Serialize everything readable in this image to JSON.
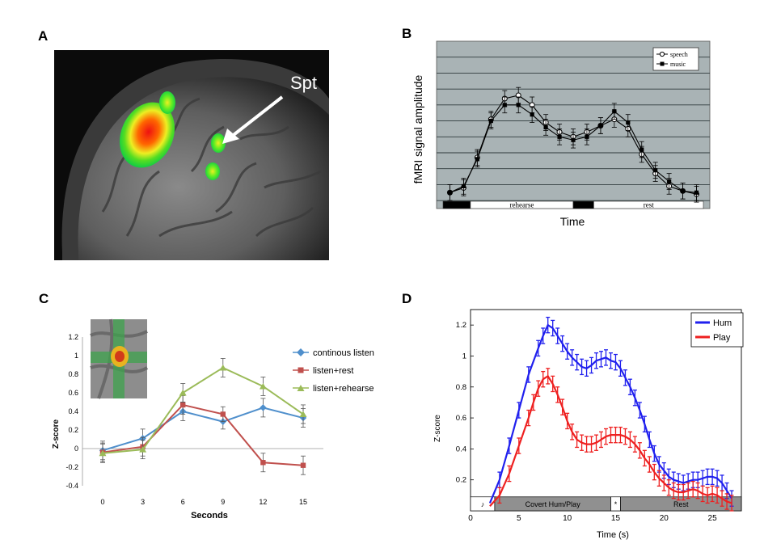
{
  "panels": {
    "A": {
      "letter": "A",
      "arrow_label": "Spt"
    },
    "B": {
      "letter": "B",
      "ylabel": "fMRI signal amplitude",
      "xlabel": "Time",
      "segment_labels": [
        "rehearse",
        "rest"
      ],
      "legend": [
        "speech",
        "music"
      ]
    },
    "C": {
      "letter": "C",
      "ylabel": "Z-score",
      "xlabel": "Seconds",
      "legend": [
        "continous listen",
        "listen+rest",
        "listen+rehearse"
      ]
    },
    "D": {
      "letter": "D",
      "ylabel": "Z-score",
      "xlabel": "Time (s)",
      "legend": [
        "Hum",
        "Play"
      ],
      "segment_labels": [
        "♪",
        "Covert Hum/Play",
        "*",
        "Rest"
      ]
    }
  },
  "chart_data": [
    {
      "panel": "B",
      "type": "line",
      "xlabel": "Time",
      "ylabel": "fMRI signal amplitude",
      "ylim": [
        0,
        10.5
      ],
      "grid": true,
      "legend_position": "top-right",
      "x": [
        1,
        2,
        3,
        4,
        5,
        6,
        7,
        8,
        9,
        10,
        11,
        12,
        13,
        14,
        15,
        16,
        17,
        18,
        19
      ],
      "series": [
        {
          "name": "speech",
          "color": "#ffffff",
          "marker": "circle-open",
          "values": [
            1.0,
            1.3,
            3.2,
            5.6,
            6.9,
            7.1,
            6.5,
            5.4,
            4.8,
            4.5,
            4.8,
            5.2,
            5.6,
            5.0,
            3.4,
            2.2,
            1.4,
            1.1,
            0.9
          ],
          "errors": [
            0.5,
            0.5,
            0.5,
            0.5,
            0.5,
            0.5,
            0.5,
            0.5,
            0.5,
            0.5,
            0.5,
            0.5,
            0.5,
            0.5,
            0.5,
            0.5,
            0.5,
            0.5,
            0.5
          ]
        },
        {
          "name": "music",
          "color": "#000000",
          "marker": "square-filled",
          "values": [
            1.0,
            1.4,
            3.1,
            5.5,
            6.5,
            6.5,
            5.9,
            5.1,
            4.5,
            4.3,
            4.5,
            5.2,
            6.1,
            5.4,
            3.7,
            2.4,
            1.7,
            1.1,
            1.0
          ],
          "errors": [
            0.5,
            0.5,
            0.5,
            0.5,
            0.5,
            0.5,
            0.5,
            0.5,
            0.5,
            0.5,
            0.5,
            0.5,
            0.5,
            0.5,
            0.5,
            0.5,
            0.5,
            0.5,
            0.5
          ]
        }
      ],
      "timeline": [
        {
          "label": "",
          "from": 0.5,
          "to": 2.5,
          "fill": "#000000"
        },
        {
          "label": "rehearse",
          "from": 2.5,
          "to": 10.0,
          "fill": "#ffffff"
        },
        {
          "label": "",
          "from": 10.0,
          "to": 11.5,
          "fill": "#000000"
        },
        {
          "label": "rest",
          "from": 11.5,
          "to": 19.5,
          "fill": "#ffffff"
        }
      ]
    },
    {
      "panel": "C",
      "type": "line",
      "xlabel": "Seconds",
      "ylabel": "Z-score",
      "ylim": [
        -0.4,
        1.2
      ],
      "yticks": [
        -0.4,
        -0.2,
        0,
        0.2,
        0.4,
        0.6,
        0.8,
        1,
        1.2
      ],
      "ytick_labels": [
        "-0.4",
        "-0.2",
        "0",
        "0.2",
        "0.4",
        "0.6",
        "0.8",
        "1",
        "1.2"
      ],
      "x": [
        0,
        3,
        6,
        9,
        12,
        15
      ],
      "legend_position": "right",
      "series": [
        {
          "name": "continous listen",
          "color": "#4f8fcc",
          "marker": "diamond",
          "values": [
            -0.02,
            0.11,
            0.4,
            0.29,
            0.44,
            0.33
          ],
          "errors": [
            0.1,
            0.1,
            0.1,
            0.08,
            0.1,
            0.1
          ]
        },
        {
          "name": "listen+rest",
          "color": "#c0504d",
          "marker": "square",
          "values": [
            -0.04,
            0.02,
            0.47,
            0.37,
            -0.15,
            -0.18
          ],
          "errors": [
            0.1,
            0.1,
            0.1,
            0.08,
            0.1,
            0.1
          ]
        },
        {
          "name": "listen+rehearse",
          "color": "#9bbb59",
          "marker": "triangle",
          "values": [
            -0.05,
            -0.01,
            0.6,
            0.87,
            0.67,
            0.37
          ],
          "errors": [
            0.1,
            0.1,
            0.1,
            0.1,
            0.1,
            0.1
          ]
        }
      ]
    },
    {
      "panel": "D",
      "type": "line",
      "xlabel": "Time (s)",
      "ylabel": "Z-score",
      "xlim": [
        0,
        28
      ],
      "ylim": [
        0,
        1.3
      ],
      "xticks": [
        0,
        5,
        10,
        15,
        20,
        25
      ],
      "yticks": [
        0.2,
        0.4,
        0.6,
        0.8,
        1,
        1.2
      ],
      "ytick_labels": [
        "0.2",
        "0.4",
        "0.6",
        "0.8",
        "1",
        "1.2"
      ],
      "legend_position": "top-right",
      "series": [
        {
          "name": "Hum",
          "color": "#2020ee",
          "x": [
            2,
            3,
            4,
            5,
            6,
            7,
            7.5,
            8,
            8.5,
            9,
            9.5,
            10,
            10.5,
            11,
            11.5,
            12,
            12.5,
            13,
            13.5,
            14,
            14.5,
            15,
            15.5,
            16,
            16.5,
            17,
            17.5,
            18,
            18.5,
            19,
            19.5,
            20,
            20.5,
            21,
            21.5,
            22,
            22.5,
            23,
            23.5,
            24,
            24.5,
            25,
            25.5,
            26,
            26.5,
            27
          ],
          "values": [
            0.05,
            0.2,
            0.42,
            0.65,
            0.88,
            1.05,
            1.13,
            1.2,
            1.18,
            1.13,
            1.08,
            1.03,
            0.99,
            0.96,
            0.93,
            0.92,
            0.94,
            0.97,
            0.98,
            0.99,
            0.97,
            0.96,
            0.92,
            0.86,
            0.8,
            0.73,
            0.65,
            0.56,
            0.46,
            0.37,
            0.3,
            0.26,
            0.22,
            0.2,
            0.19,
            0.18,
            0.19,
            0.2,
            0.2,
            0.21,
            0.22,
            0.22,
            0.21,
            0.18,
            0.13,
            0.08
          ],
          "error": 0.05
        },
        {
          "name": "Play",
          "color": "#ee2020",
          "x": [
            2,
            3,
            4,
            5,
            6,
            6.5,
            7,
            7.5,
            8,
            8.5,
            9,
            9.5,
            10,
            10.5,
            11,
            11.5,
            12,
            12.5,
            13,
            13.5,
            14,
            14.5,
            15,
            15.5,
            16,
            16.5,
            17,
            17.5,
            18,
            18.5,
            19,
            19.5,
            20,
            20.5,
            21,
            21.5,
            22,
            22.5,
            23,
            23.5,
            24,
            24.5,
            25,
            25.5,
            26,
            26.5,
            27
          ],
          "values": [
            0.03,
            0.1,
            0.24,
            0.42,
            0.6,
            0.7,
            0.79,
            0.85,
            0.87,
            0.82,
            0.75,
            0.67,
            0.58,
            0.51,
            0.46,
            0.44,
            0.43,
            0.43,
            0.44,
            0.46,
            0.48,
            0.49,
            0.49,
            0.49,
            0.48,
            0.46,
            0.43,
            0.39,
            0.34,
            0.3,
            0.25,
            0.21,
            0.18,
            0.15,
            0.13,
            0.12,
            0.12,
            0.13,
            0.14,
            0.13,
            0.11,
            0.1,
            0.11,
            0.1,
            0.08,
            0.06,
            0.05
          ],
          "error": 0.05
        }
      ],
      "timeline": [
        {
          "label": "♪",
          "from": 0,
          "to": 2.5,
          "fill": "#ffffff"
        },
        {
          "label": "Covert Hum/Play",
          "from": 2.5,
          "to": 14.5,
          "fill": "#909090"
        },
        {
          "label": "*",
          "from": 14.5,
          "to": 15.5,
          "fill": "#ffffff"
        },
        {
          "label": "Rest",
          "from": 15.5,
          "to": 28,
          "fill": "#909090"
        }
      ]
    }
  ]
}
